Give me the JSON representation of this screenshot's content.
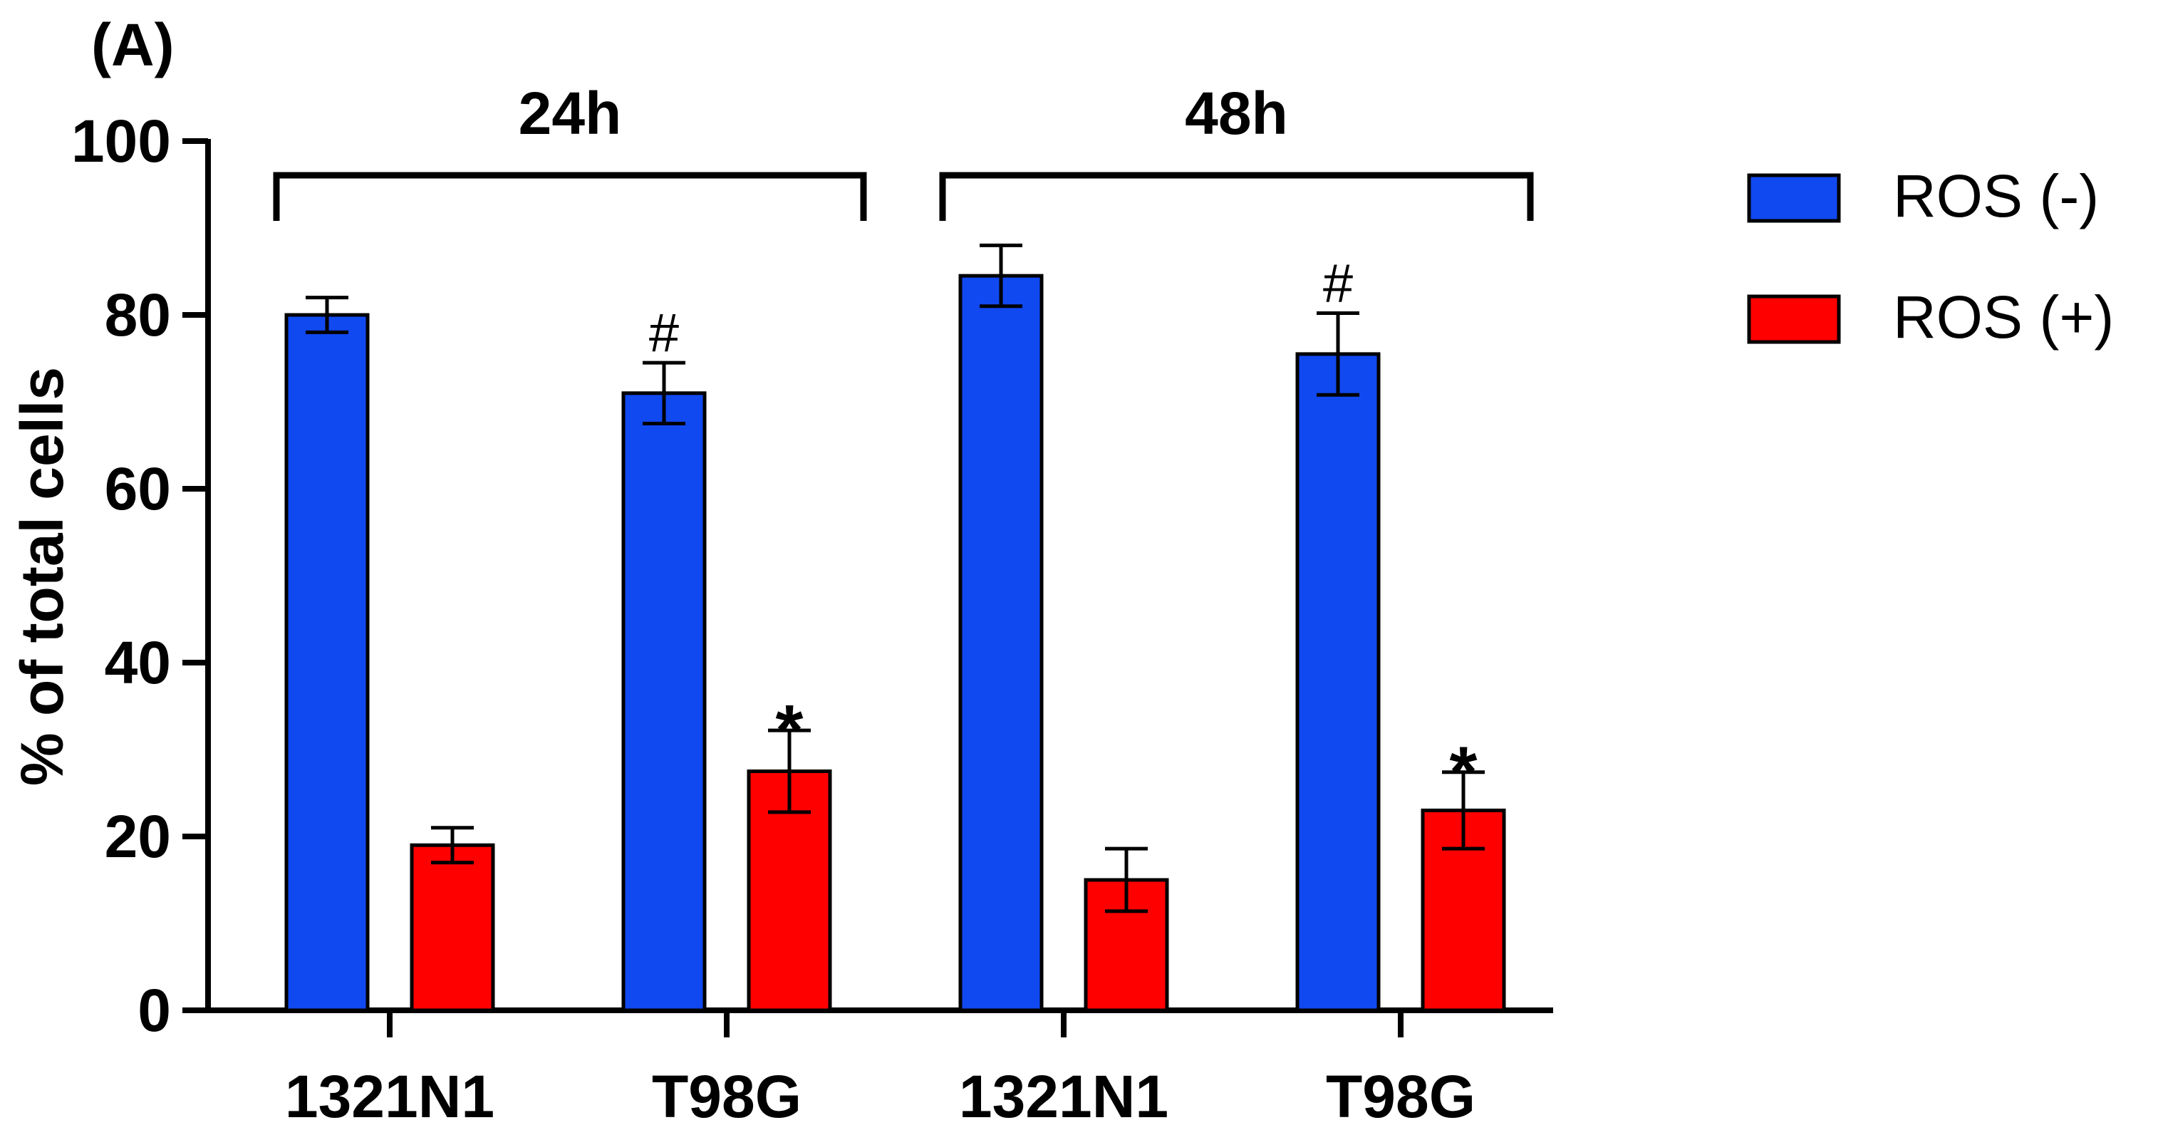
{
  "chart_data": {
    "type": "bar",
    "panel_label": "(A)",
    "title": "",
    "xlabel": "",
    "ylabel": "% of total cells",
    "ylim": [
      0,
      100
    ],
    "yticks": [
      0,
      20,
      40,
      60,
      80,
      100
    ],
    "grid": false,
    "legend_position": "top-right",
    "colors": {
      "ROS (-)": "#1149f0",
      "ROS (+)": "#ff0000",
      "edge": "#000000"
    },
    "groups": [
      {
        "label": "24h",
        "categories": [
          "1321N1",
          "T98G"
        ]
      },
      {
        "label": "48h",
        "categories": [
          "1321N1",
          "T98G"
        ]
      }
    ],
    "categories": [
      "1321N1",
      "T98G",
      "1321N1",
      "T98G"
    ],
    "series": [
      {
        "name": "ROS (-)",
        "values": [
          80,
          71,
          84.5,
          75.5
        ],
        "errors": [
          2,
          3.5,
          3.5,
          4.7
        ],
        "annotations": [
          "",
          "#",
          "",
          "#"
        ]
      },
      {
        "name": "ROS (+)",
        "values": [
          19,
          27.5,
          15,
          23
        ],
        "errors": [
          2,
          4.7,
          3.6,
          4.4
        ],
        "annotations": [
          "",
          "*",
          "",
          "*"
        ]
      }
    ]
  }
}
